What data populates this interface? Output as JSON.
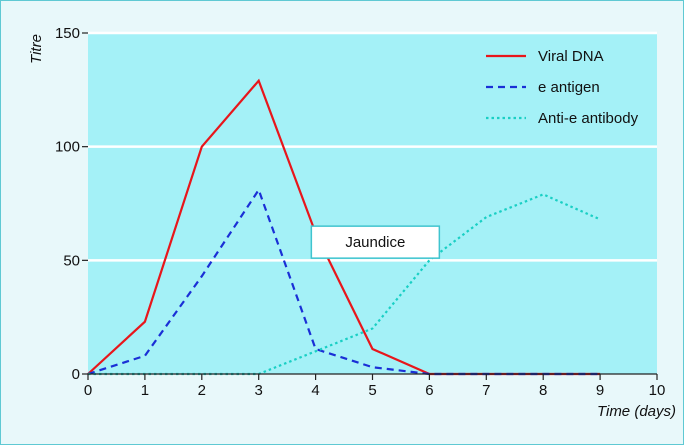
{
  "chart_data": {
    "type": "line",
    "title": "",
    "xlabel": "Time (days)",
    "ylabel": "Titre",
    "xlim": [
      0,
      10
    ],
    "ylim": [
      0,
      150
    ],
    "x_ticks": [
      0,
      1,
      2,
      3,
      4,
      5,
      6,
      7,
      8,
      9,
      10
    ],
    "y_ticks": [
      0,
      50,
      100,
      150
    ],
    "grid": "horizontal",
    "legend_position": "top-right",
    "series": [
      {
        "name": "Viral DNA",
        "color": "#e8161b",
        "style": "solid",
        "x": [
          0,
          1,
          2,
          3,
          4,
          5,
          6,
          7,
          8,
          9
        ],
        "values": [
          0,
          23,
          100,
          129,
          62,
          11,
          0,
          0,
          0,
          0
        ]
      },
      {
        "name": "e antigen",
        "color": "#1a2fd6",
        "style": "dashed",
        "x": [
          0,
          1,
          2,
          3,
          4,
          5,
          6,
          7,
          8,
          9
        ],
        "values": [
          0,
          8,
          43,
          81,
          11,
          3,
          0,
          0,
          0,
          0
        ]
      },
      {
        "name": "Anti-e antibody",
        "color": "#19cfc4",
        "style": "dotted",
        "x": [
          0,
          1,
          2,
          3,
          4,
          5,
          6,
          7,
          8,
          9
        ],
        "values": [
          0,
          0,
          0,
          0,
          10,
          20,
          50,
          69,
          79,
          68
        ]
      }
    ],
    "annotations": [
      {
        "text": "Jaundice",
        "x": 5.05,
        "y": 58
      }
    ]
  }
}
